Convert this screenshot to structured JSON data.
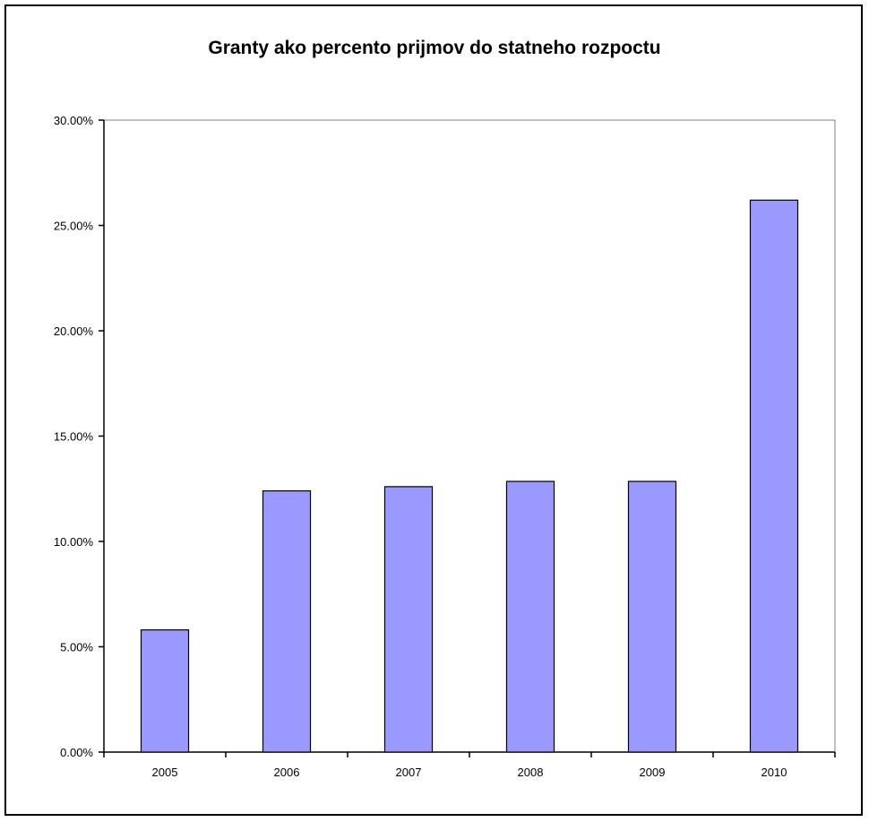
{
  "chart_data": {
    "type": "bar",
    "title": "Granty ako percento prijmov do statneho rozpoctu",
    "categories": [
      "2005",
      "2006",
      "2007",
      "2008",
      "2009",
      "2010"
    ],
    "values": [
      5.8,
      12.4,
      12.6,
      12.85,
      12.85,
      26.2
    ],
    "ylim": [
      0,
      30
    ],
    "yticks": [
      "0.00%",
      "5.00%",
      "10.00%",
      "15.00%",
      "20.00%",
      "25.00%",
      "30.00%"
    ],
    "xlabel": "",
    "ylabel": "",
    "grid": false,
    "legend": "none",
    "colors": {
      "bar_fill": "#9999ff",
      "bar_stroke": "#000000",
      "axis": "#000000",
      "plot_border": "#808080"
    }
  }
}
